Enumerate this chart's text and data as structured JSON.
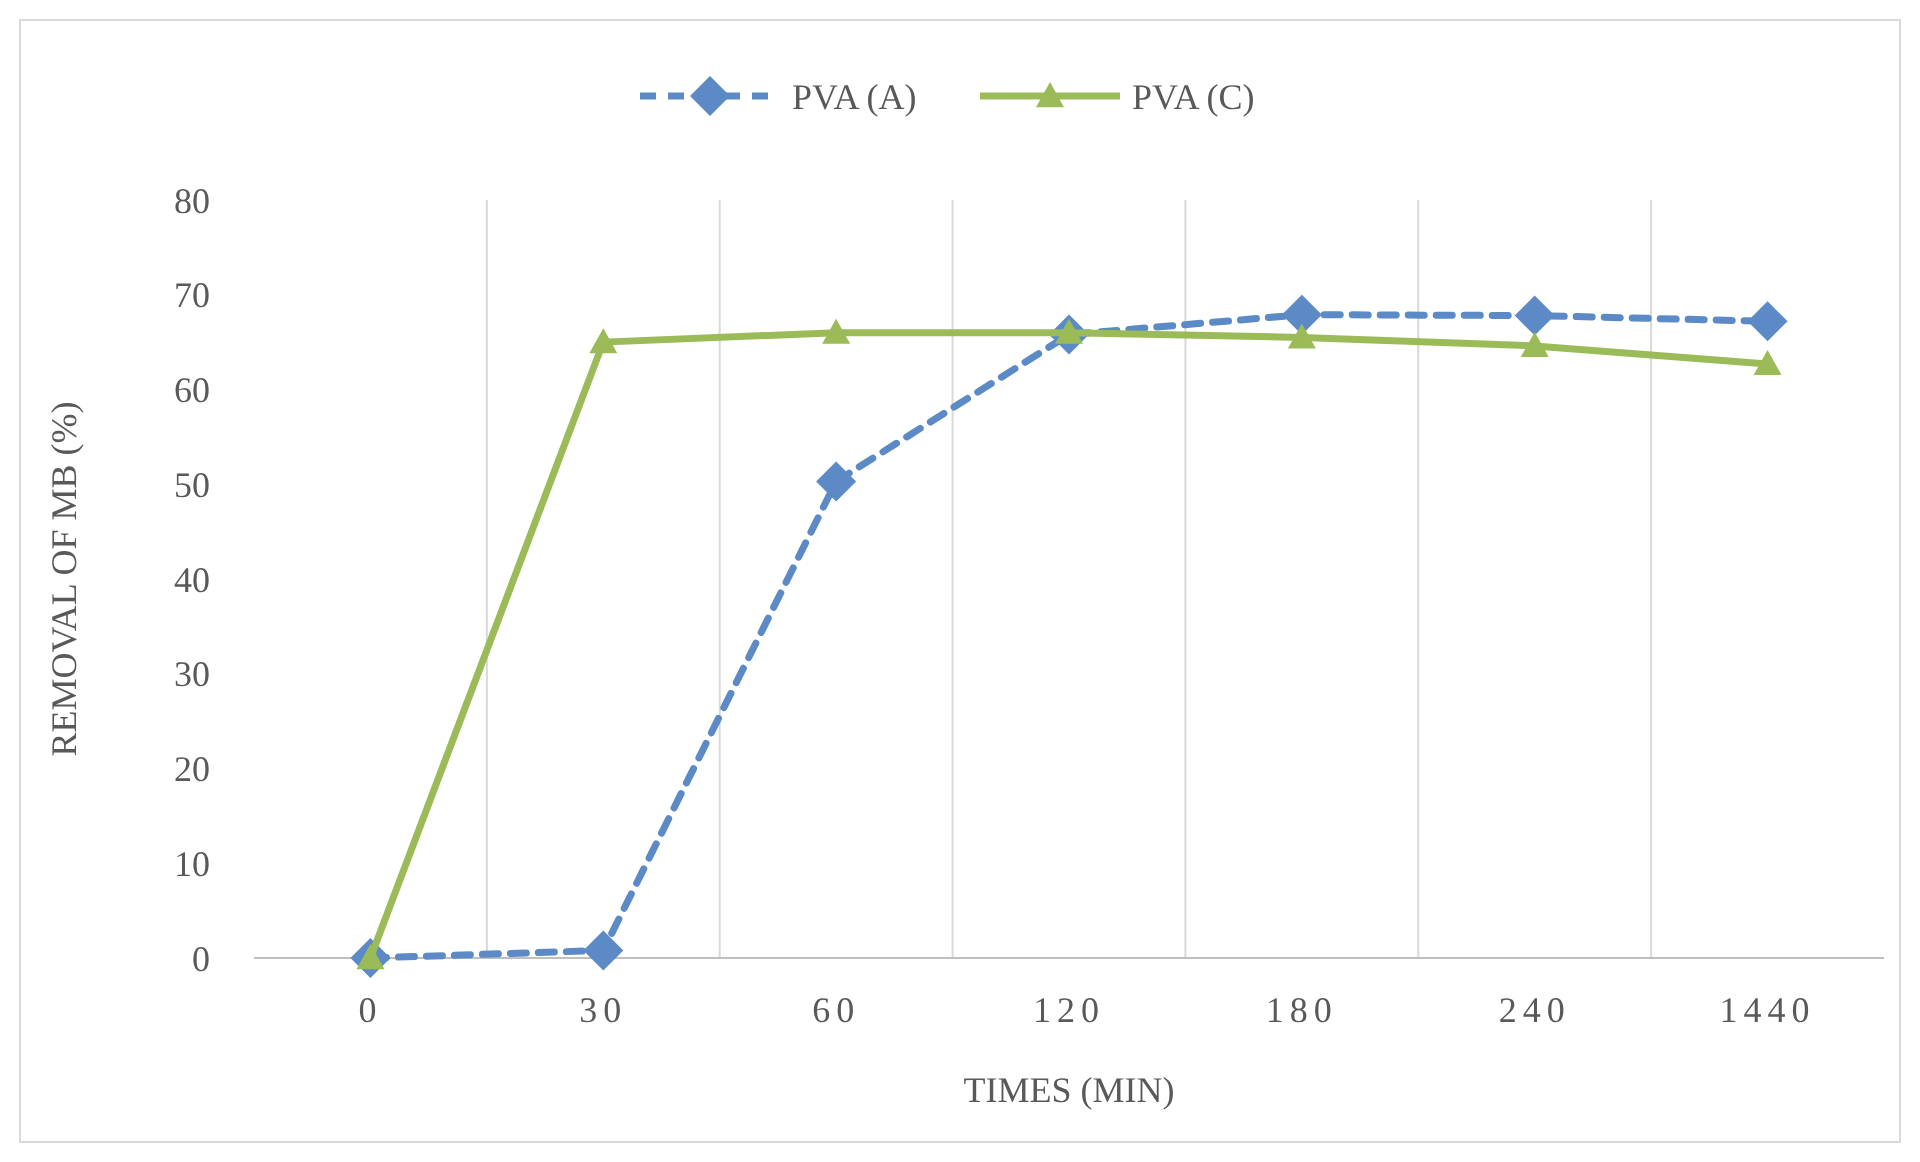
{
  "chart_data": {
    "type": "line",
    "xlabel": "TIMES (MIN)",
    "ylabel": "REMOVAL OF MB (%)",
    "categories": [
      "0",
      "30",
      "60",
      "120",
      "180",
      "240",
      "1440"
    ],
    "series": [
      {
        "name": "PVA (A)",
        "color": "#5b8ac6",
        "marker": "diamond",
        "line_style": "dashed",
        "values": [
          0,
          0.8,
          50.3,
          65.8,
          67.9,
          67.8,
          67.2
        ]
      },
      {
        "name": "PVA (C)",
        "color": "#9bbb59",
        "marker": "triangle",
        "line_style": "solid",
        "values": [
          0,
          65,
          66,
          66,
          65.5,
          64.6,
          62.7
        ]
      }
    ],
    "ylim": [
      0,
      80
    ],
    "yticks": [
      0,
      10,
      20,
      30,
      40,
      50,
      60,
      70,
      80
    ],
    "grid": "x",
    "legend": "top"
  }
}
